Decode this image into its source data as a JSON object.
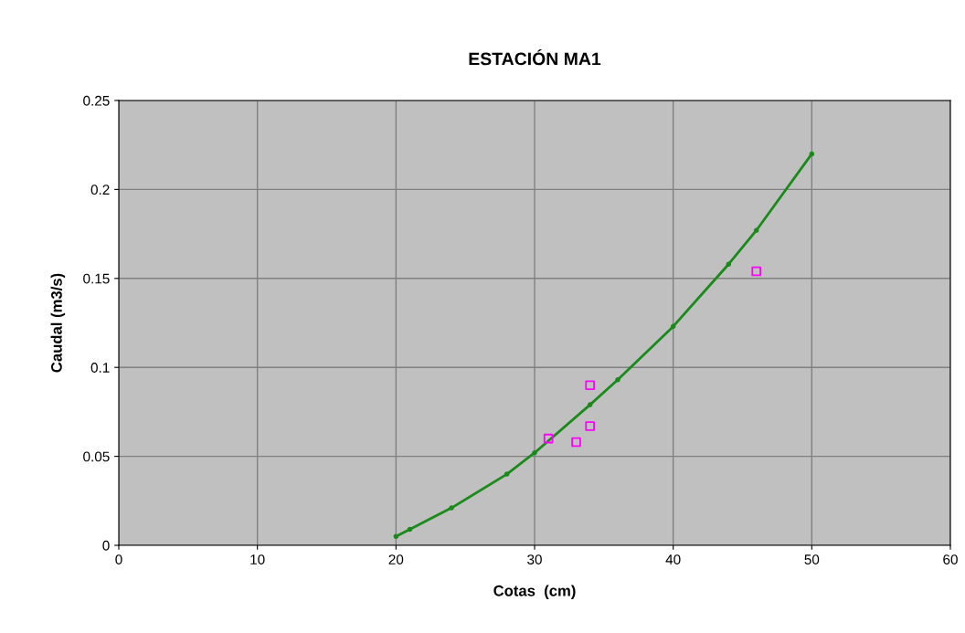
{
  "chart_data": {
    "type": "line",
    "title": "ESTACIÓN MA1",
    "xlabel": "Cotas  (cm)",
    "ylabel": "Caudal (m3/s)",
    "series": [
      {
        "color": "#1a8a1a",
        "marker": "circle",
        "x": [
          20,
          21,
          24,
          28,
          30,
          34,
          36,
          40,
          44,
          46,
          50
        ],
        "values": [
          0.005,
          0.009,
          0.021,
          0.04,
          0.052,
          0.079,
          0.093,
          0.123,
          0.158,
          0.177,
          0.22
        ]
      },
      {
        "type": "scatter",
        "color": "#ff00ff",
        "marker": "square",
        "x": [
          31,
          33,
          34,
          34,
          46
        ],
        "values": [
          0.06,
          0.058,
          0.067,
          0.09,
          0.154
        ]
      }
    ],
    "xlim": [
      0,
      60
    ],
    "xticks": [
      0,
      10,
      20,
      30,
      40,
      50,
      60
    ],
    "ylim": [
      0,
      0.25
    ],
    "yticks": [
      0,
      0.05,
      0.1,
      0.15,
      0.2,
      0.25
    ],
    "grid": true,
    "legend": false
  }
}
